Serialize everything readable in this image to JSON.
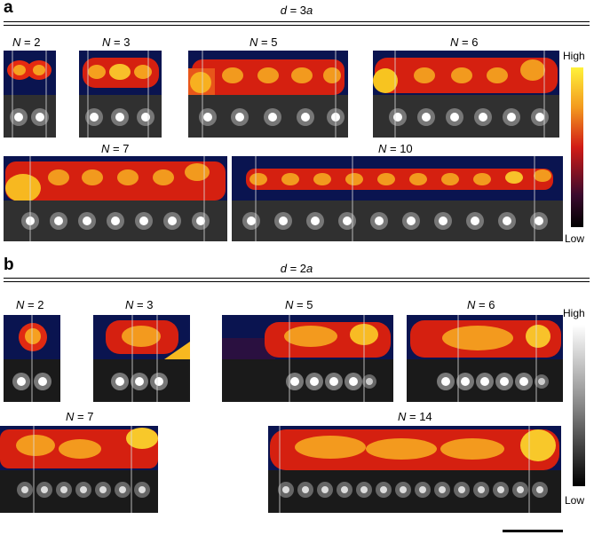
{
  "panel_a": {
    "letter": "a",
    "spacing_label": "d = 3a",
    "images": [
      {
        "N": "N = 2"
      },
      {
        "N": "N = 3"
      },
      {
        "N": "N = 5"
      },
      {
        "N": "N = 6"
      },
      {
        "N": "N = 7"
      },
      {
        "N": "N = 10"
      }
    ],
    "colorbar": {
      "high": "High",
      "low": "Low",
      "colors": [
        "#fff23a",
        "#f39a1f",
        "#d11b16",
        "#3a0a2e",
        "#000000"
      ]
    }
  },
  "panel_b": {
    "letter": "b",
    "spacing_label": "d = 2a",
    "images": [
      {
        "N": "N = 2"
      },
      {
        "N": "N = 3"
      },
      {
        "N": "N = 5"
      },
      {
        "N": "N = 6"
      },
      {
        "N": "N = 7"
      },
      {
        "N": "N = 14"
      }
    ],
    "colorbar": {
      "high": "High",
      "low": "Low",
      "colors": [
        "#ffffff",
        "#888888",
        "#000000"
      ]
    }
  }
}
